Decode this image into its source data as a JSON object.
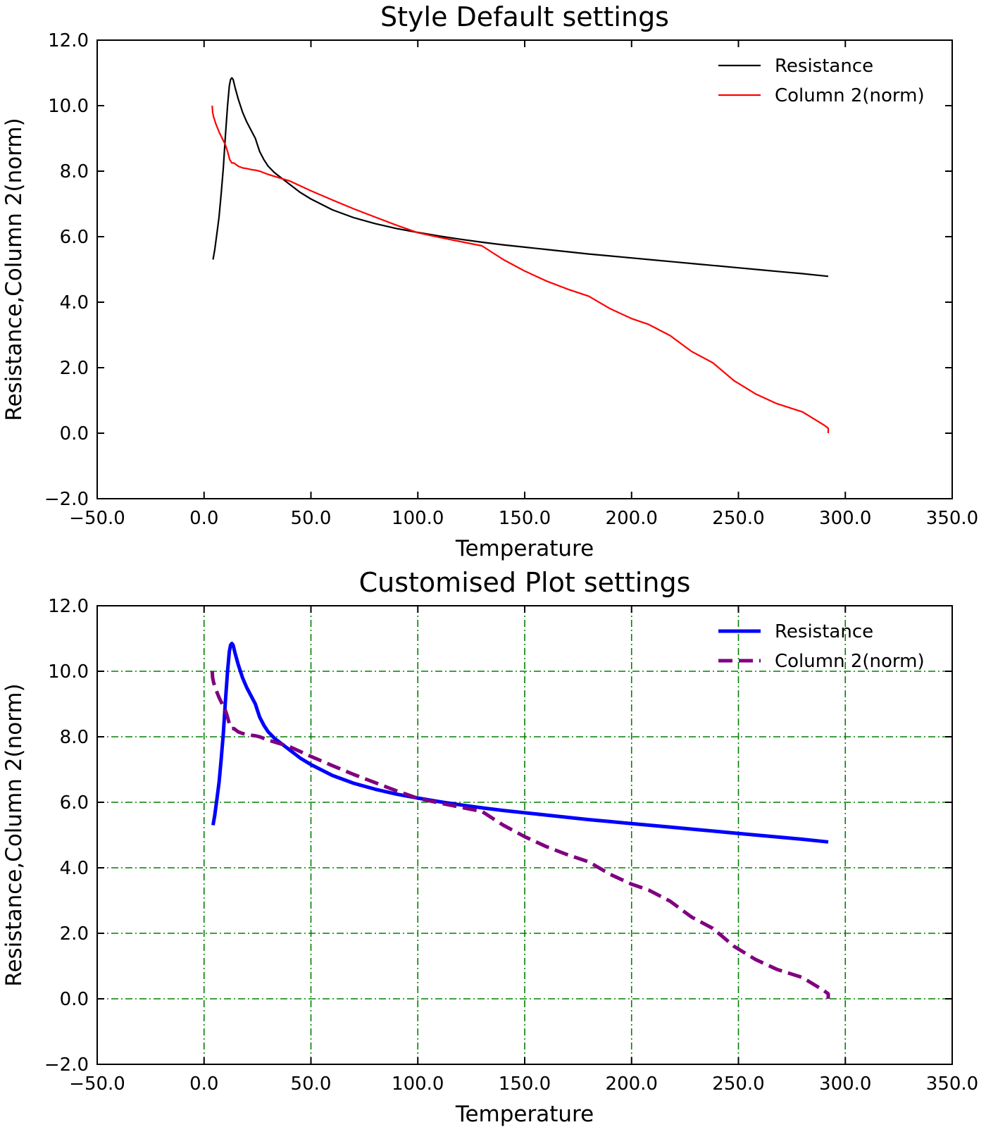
{
  "chart_data": [
    {
      "type": "line",
      "title": "Style Default settings",
      "xlabel": "Temperature",
      "ylabel": "Resistance,Column 2(norm)",
      "xlim": [
        -50,
        350
      ],
      "ylim": [
        -2,
        12
      ],
      "xticks": [
        -50,
        0,
        50,
        100,
        150,
        200,
        250,
        300,
        350
      ],
      "xtick_labels": [
        "−50.0",
        "0.0",
        "50.0",
        "100.0",
        "150.0",
        "200.0",
        "250.0",
        "300.0",
        "350.0"
      ],
      "yticks": [
        -2,
        0,
        2,
        4,
        6,
        8,
        10,
        12
      ],
      "ytick_labels": [
        "−2.0",
        "0.0",
        "2.0",
        "4.0",
        "6.0",
        "8.0",
        "10.0",
        "12.0"
      ],
      "grid": false,
      "legend_position": "top-right",
      "series": [
        {
          "name": "Resistance",
          "color": "#000000",
          "style": "solid",
          "x": [
            4.2,
            5,
            6,
            7,
            8,
            9,
            10,
            11,
            11.8,
            12.4,
            13,
            13.6,
            14.5,
            16,
            18,
            20,
            22,
            24,
            25,
            26,
            28,
            30,
            33,
            36,
            40,
            45,
            50,
            60,
            70,
            80,
            90,
            100,
            110,
            120,
            130,
            140,
            150,
            160,
            170,
            180,
            190,
            200,
            210,
            220,
            230,
            240,
            250,
            260,
            270,
            280,
            292
          ],
          "y": [
            5.3,
            5.6,
            6.1,
            6.6,
            7.3,
            8.1,
            9.1,
            10.0,
            10.6,
            10.8,
            10.85,
            10.8,
            10.55,
            10.2,
            9.8,
            9.5,
            9.25,
            9.0,
            8.8,
            8.6,
            8.35,
            8.15,
            7.95,
            7.8,
            7.6,
            7.35,
            7.15,
            6.82,
            6.58,
            6.4,
            6.25,
            6.13,
            6.02,
            5.92,
            5.83,
            5.75,
            5.68,
            5.61,
            5.54,
            5.47,
            5.41,
            5.35,
            5.29,
            5.23,
            5.17,
            5.11,
            5.05,
            4.99,
            4.93,
            4.87,
            4.79
          ]
        },
        {
          "name": "Column 2(norm)",
          "color": "#ff0000",
          "style": "solid",
          "x": [
            3.8,
            4.0,
            4.5,
            5.5,
            7,
            8.5,
            10,
            11,
            12,
            13,
            14,
            15,
            16,
            18,
            20,
            22,
            24,
            26,
            30,
            35,
            40,
            50,
            60,
            70,
            80,
            90,
            100,
            110,
            120,
            130,
            140,
            150,
            160,
            170,
            180,
            190,
            200,
            208,
            218,
            228,
            238,
            248,
            258,
            268,
            280,
            290,
            292,
            292
          ],
          "y": [
            10.0,
            9.8,
            9.65,
            9.45,
            9.2,
            9.0,
            8.8,
            8.6,
            8.35,
            8.25,
            8.25,
            8.2,
            8.15,
            8.1,
            8.08,
            8.05,
            8.03,
            8.0,
            7.9,
            7.8,
            7.7,
            7.4,
            7.12,
            6.85,
            6.6,
            6.35,
            6.12,
            5.98,
            5.85,
            5.72,
            5.3,
            4.95,
            4.65,
            4.4,
            4.18,
            3.8,
            3.5,
            3.32,
            2.98,
            2.5,
            2.15,
            1.6,
            1.2,
            0.9,
            0.65,
            0.25,
            0.15,
            0.0
          ]
        }
      ]
    },
    {
      "type": "line",
      "title": "Customised Plot settings",
      "xlabel": "Temperature",
      "ylabel": "Resistance,Column 2(norm)",
      "xlim": [
        -50,
        350
      ],
      "ylim": [
        -2,
        12
      ],
      "xticks": [
        -50,
        0,
        50,
        100,
        150,
        200,
        250,
        300,
        350
      ],
      "xtick_labels": [
        "−50.0",
        "0.0",
        "50.0",
        "100.0",
        "150.0",
        "200.0",
        "250.0",
        "300.0",
        "350.0"
      ],
      "yticks": [
        -2,
        0,
        2,
        4,
        6,
        8,
        10,
        12
      ],
      "ytick_labels": [
        "−2.0",
        "0.0",
        "2.0",
        "4.0",
        "6.0",
        "8.0",
        "10.0",
        "12.0"
      ],
      "grid": true,
      "grid_color": "#008000",
      "grid_style": "dashdot",
      "legend_position": "top-right",
      "series": [
        {
          "name": "Resistance",
          "color": "#0000ff",
          "style": "solid",
          "x": [
            4.2,
            5,
            6,
            7,
            8,
            9,
            10,
            11,
            11.8,
            12.4,
            13,
            13.6,
            14.5,
            16,
            18,
            20,
            22,
            24,
            25,
            26,
            28,
            30,
            33,
            36,
            40,
            45,
            50,
            60,
            70,
            80,
            90,
            100,
            110,
            120,
            130,
            140,
            150,
            160,
            170,
            180,
            190,
            200,
            210,
            220,
            230,
            240,
            250,
            260,
            270,
            280,
            292
          ],
          "y": [
            5.3,
            5.6,
            6.1,
            6.6,
            7.3,
            8.1,
            9.1,
            10.0,
            10.6,
            10.8,
            10.85,
            10.8,
            10.55,
            10.2,
            9.8,
            9.5,
            9.25,
            9.0,
            8.8,
            8.6,
            8.35,
            8.15,
            7.95,
            7.8,
            7.6,
            7.35,
            7.15,
            6.82,
            6.58,
            6.4,
            6.25,
            6.13,
            6.02,
            5.92,
            5.83,
            5.75,
            5.68,
            5.61,
            5.54,
            5.47,
            5.41,
            5.35,
            5.29,
            5.23,
            5.17,
            5.11,
            5.05,
            4.99,
            4.93,
            4.87,
            4.79
          ]
        },
        {
          "name": "Column 2(norm)",
          "color": "#800080",
          "style": "dashed",
          "x": [
            3.8,
            4.0,
            4.5,
            5.5,
            7,
            8.5,
            10,
            11,
            12,
            13,
            14,
            15,
            16,
            18,
            20,
            22,
            24,
            26,
            30,
            35,
            40,
            50,
            60,
            70,
            80,
            90,
            100,
            110,
            120,
            130,
            140,
            150,
            160,
            170,
            180,
            190,
            200,
            208,
            218,
            228,
            238,
            248,
            258,
            268,
            280,
            290,
            292,
            292
          ],
          "y": [
            10.0,
            9.8,
            9.65,
            9.45,
            9.2,
            9.0,
            8.8,
            8.6,
            8.35,
            8.25,
            8.25,
            8.2,
            8.15,
            8.1,
            8.08,
            8.05,
            8.03,
            8.0,
            7.9,
            7.8,
            7.7,
            7.4,
            7.12,
            6.85,
            6.6,
            6.35,
            6.12,
            5.98,
            5.85,
            5.72,
            5.3,
            4.95,
            4.65,
            4.4,
            4.18,
            3.8,
            3.5,
            3.32,
            2.98,
            2.5,
            2.15,
            1.6,
            1.2,
            0.9,
            0.65,
            0.25,
            0.15,
            0.0
          ]
        }
      ]
    }
  ]
}
